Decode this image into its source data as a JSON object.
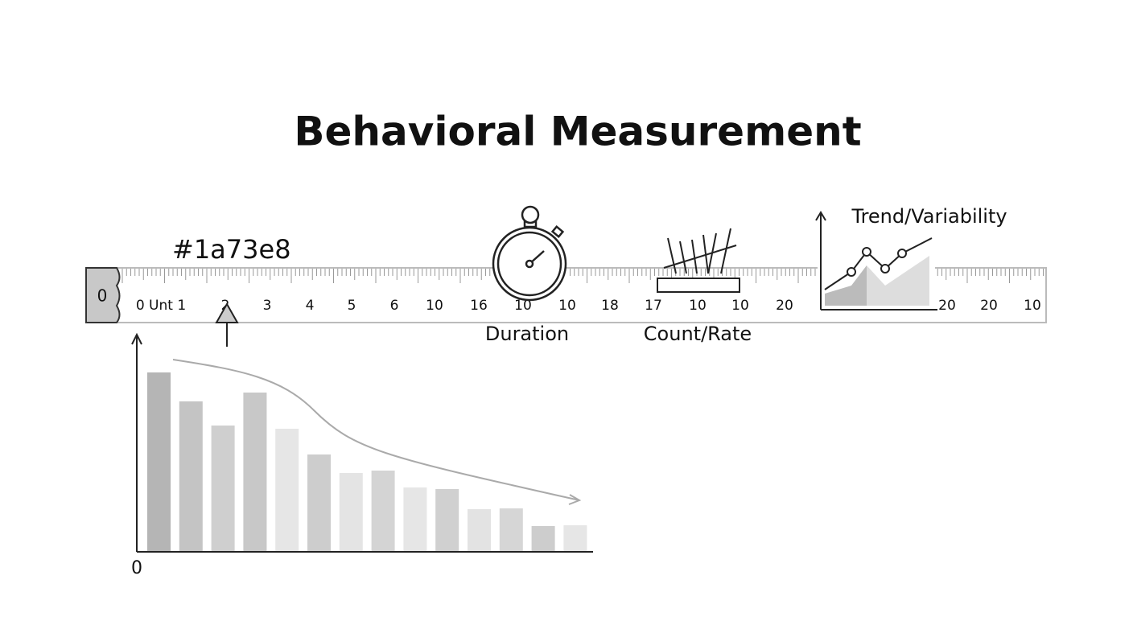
{
  "header": {
    "title": "Behavioral Measurement"
  },
  "annotation": "#1a73e8",
  "ruler": {
    "end_cap": "0",
    "labels": [
      "0 Unt 1",
      "2",
      "3",
      "4",
      "5",
      "6",
      "10",
      "16",
      "10",
      "10",
      "18",
      "17",
      "10",
      "10",
      "20",
      "20",
      "20",
      "10"
    ]
  },
  "icons": {
    "duration": "Duration",
    "count_rate": "Count/Rate",
    "trend": "Trend/Variability"
  },
  "bar_chart": {
    "origin_label": "0"
  }
}
